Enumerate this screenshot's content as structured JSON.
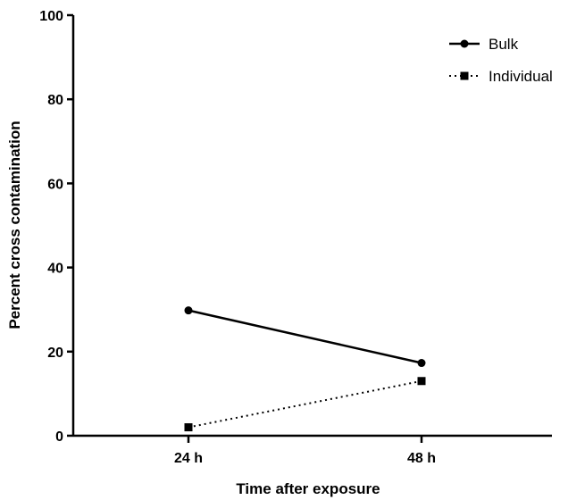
{
  "chart_data": {
    "type": "line",
    "x": [
      "24 h",
      "48 h"
    ],
    "xlabel": "Time after exposure",
    "ylabel": "Percent cross contamination",
    "ylim": [
      0,
      100
    ],
    "yticks": [
      0,
      20,
      40,
      60,
      80,
      100
    ],
    "grid": false,
    "legend_position": "top-right",
    "series": [
      {
        "name": "Bulk",
        "values": [
          29.8,
          17.3
        ],
        "marker": "circle",
        "line_style": "solid",
        "color": "#000000"
      },
      {
        "name": "Individual",
        "values": [
          2.0,
          13.0
        ],
        "marker": "square",
        "line_style": "dotted",
        "color": "#000000"
      }
    ]
  }
}
